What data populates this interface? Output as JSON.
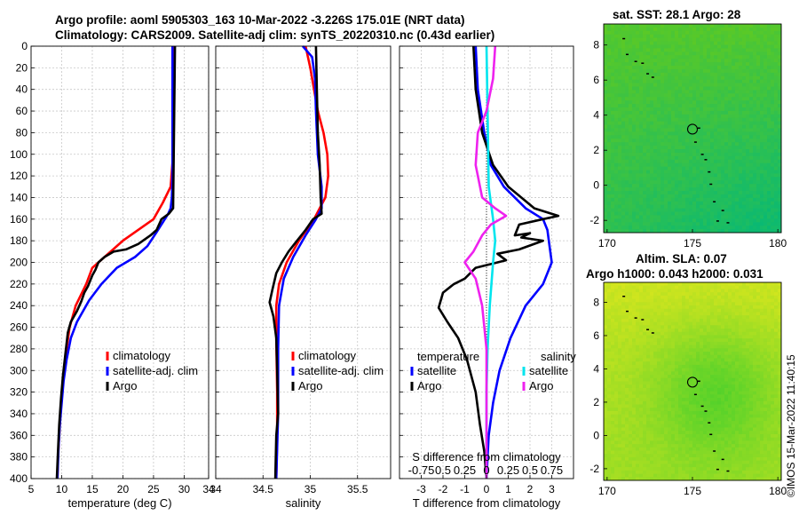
{
  "title": {
    "line1": "Argo profile: aoml 5905303_163 10-Mar-2022 -3.226S 175.01E (NRT data)",
    "line2": "Climatology: CARS2009. Satellite-adj clim: synTS_20220310.nc (0.43d earlier)"
  },
  "stamp": "©IMOS 15-Mar-2022 11:40:15",
  "colors": {
    "climatology": "#ff0000",
    "satellite": "#0000ff",
    "argo": "#000000",
    "sat_salinity": "#00e5ee",
    "argo_salinity": "#ee22ee"
  },
  "chart_data": [
    {
      "type": "line",
      "id": "temperature",
      "xlabel": "temperature (deg C)",
      "ylabel": "",
      "xlim": [
        5,
        34
      ],
      "ylim": [
        400,
        0
      ],
      "xticks": [
        5,
        10,
        15,
        20,
        25,
        30,
        34
      ],
      "yticks": [
        0,
        20,
        40,
        60,
        80,
        100,
        120,
        140,
        160,
        180,
        200,
        220,
        240,
        260,
        280,
        300,
        320,
        340,
        360,
        380,
        400
      ],
      "legend": [
        "climatology",
        "satellite-adj. clim",
        "Argo"
      ],
      "series": [
        {
          "name": "climatology",
          "color_key": "climatology",
          "points": [
            [
              28.3,
              0
            ],
            [
              28.3,
              40
            ],
            [
              28.2,
              100
            ],
            [
              27.8,
              130
            ],
            [
              26.5,
              145
            ],
            [
              25,
              160
            ],
            [
              20,
              180
            ],
            [
              17,
              195
            ],
            [
              15,
              205
            ],
            [
              14,
              220
            ],
            [
              12.3,
              240
            ],
            [
              11.3,
              260
            ],
            [
              10.8,
              280
            ],
            [
              10.4,
              300
            ],
            [
              10.1,
              320
            ],
            [
              9.8,
              340
            ],
            [
              9.6,
              360
            ],
            [
              9.4,
              380
            ],
            [
              9.3,
              400
            ]
          ]
        },
        {
          "name": "satellite-adj. clim",
          "color_key": "satellite",
          "points": [
            [
              28.1,
              0
            ],
            [
              28.1,
              80
            ],
            [
              28.1,
              120
            ],
            [
              28.0,
              140
            ],
            [
              27.8,
              150
            ],
            [
              27.4,
              155
            ],
            [
              26.5,
              163
            ],
            [
              25.5,
              172
            ],
            [
              24,
              185
            ],
            [
              22,
              195
            ],
            [
              19,
              205
            ],
            [
              16.5,
              220
            ],
            [
              14.5,
              235
            ],
            [
              12.5,
              255
            ],
            [
              11.5,
              270
            ],
            [
              10.8,
              290
            ],
            [
              10.3,
              310
            ],
            [
              10,
              330
            ],
            [
              9.7,
              350
            ],
            [
              9.5,
              370
            ],
            [
              9.3,
              400
            ]
          ]
        },
        {
          "name": "Argo",
          "color_key": "argo",
          "points": [
            [
              28.5,
              0
            ],
            [
              28.4,
              50
            ],
            [
              28.3,
              100
            ],
            [
              28.2,
              150
            ],
            [
              27.5,
              155
            ],
            [
              26.3,
              160
            ],
            [
              25.5,
              170
            ],
            [
              24.5,
              175
            ],
            [
              22.5,
              183
            ],
            [
              20.5,
              188
            ],
            [
              18.5,
              190
            ],
            [
              17,
              195
            ],
            [
              16,
              200
            ],
            [
              15.5,
              207
            ],
            [
              15,
              212
            ],
            [
              14.3,
              222
            ],
            [
              13.7,
              228
            ],
            [
              13.2,
              236
            ],
            [
              12.5,
              245
            ],
            [
              11.5,
              255
            ],
            [
              11,
              265
            ],
            [
              10.6,
              285
            ],
            [
              10.2,
              305
            ],
            [
              9.9,
              325
            ],
            [
              9.6,
              350
            ],
            [
              9.4,
              375
            ],
            [
              9.2,
              400
            ]
          ]
        }
      ]
    },
    {
      "type": "line",
      "id": "salinity",
      "xlabel": "salinity",
      "ylabel": "",
      "xlim": [
        34,
        35.85
      ],
      "ylim": [
        400,
        0
      ],
      "xticks": [
        34,
        34.5,
        35,
        35.5
      ],
      "yticks": [
        0,
        20,
        40,
        60,
        80,
        100,
        120,
        140,
        160,
        180,
        200,
        220,
        240,
        260,
        280,
        300,
        320,
        340,
        360,
        380,
        400
      ],
      "legend": [
        "climatology",
        "satellite-adj. clim",
        "Argo"
      ],
      "series": [
        {
          "name": "climatology",
          "color_key": "climatology",
          "points": [
            [
              34.95,
              0
            ],
            [
              35.0,
              20
            ],
            [
              35.04,
              40
            ],
            [
              35.08,
              60
            ],
            [
              35.14,
              80
            ],
            [
              35.18,
              100
            ],
            [
              35.19,
              120
            ],
            [
              35.16,
              140
            ],
            [
              35.04,
              160
            ],
            [
              34.88,
              180
            ],
            [
              34.75,
              200
            ],
            [
              34.67,
              220
            ],
            [
              34.64,
              240
            ],
            [
              34.64,
              270
            ],
            [
              34.65,
              320
            ],
            [
              34.65,
              360
            ],
            [
              34.64,
              400
            ]
          ]
        },
        {
          "name": "satellite-adj. clim",
          "color_key": "satellite",
          "points": [
            [
              34.92,
              0
            ],
            [
              35.02,
              10
            ],
            [
              35.05,
              30
            ],
            [
              35.06,
              60
            ],
            [
              35.08,
              100
            ],
            [
              35.12,
              130
            ],
            [
              35.12,
              150
            ],
            [
              35.06,
              160
            ],
            [
              34.95,
              175
            ],
            [
              34.82,
              195
            ],
            [
              34.72,
              215
            ],
            [
              34.67,
              240
            ],
            [
              34.66,
              280
            ],
            [
              34.66,
              340
            ],
            [
              34.64,
              400
            ]
          ]
        },
        {
          "name": "Argo",
          "color_key": "argo",
          "points": [
            [
              35.06,
              0
            ],
            [
              35.07,
              40
            ],
            [
              35.08,
              80
            ],
            [
              35.1,
              110
            ],
            [
              35.11,
              140
            ],
            [
              35.12,
              155
            ],
            [
              35.03,
              160
            ],
            [
              34.95,
              170
            ],
            [
              34.86,
              180
            ],
            [
              34.77,
              190
            ],
            [
              34.7,
              200
            ],
            [
              34.64,
              210
            ],
            [
              34.6,
              225
            ],
            [
              34.57,
              237
            ],
            [
              34.61,
              250
            ],
            [
              34.64,
              270
            ],
            [
              34.65,
              300
            ],
            [
              34.66,
              340
            ],
            [
              34.64,
              360
            ],
            [
              34.63,
              400
            ]
          ]
        }
      ]
    },
    {
      "type": "line",
      "id": "difference",
      "xlabel": "T difference from climatology",
      "xlabel_top": "S difference from climatology",
      "xlim": [
        -4,
        4
      ],
      "ylim": [
        400,
        0
      ],
      "xticks": [
        -3,
        -2,
        -1,
        0,
        1,
        2,
        3
      ],
      "s_ticks_text": "-0.75 0.5 0.25   0   0.25 0.5 0.75",
      "s_tick_labels": [
        "-0.75",
        "0.5",
        "0.25",
        "0",
        "0.25",
        "0.5",
        "0.75"
      ],
      "yticks": [
        0,
        20,
        40,
        60,
        80,
        100,
        120,
        140,
        160,
        180,
        200,
        220,
        240,
        260,
        280,
        300,
        320,
        340,
        360,
        380,
        400
      ],
      "legend_left_header": "temperature",
      "legend_right_header": "salinity",
      "legend": [
        "satellite",
        "Argo",
        "satellite",
        "Argo"
      ],
      "series": [
        {
          "name": "T satellite",
          "color_key": "satellite",
          "points": [
            [
              -0.5,
              0
            ],
            [
              -0.4,
              40
            ],
            [
              -0.1,
              80
            ],
            [
              0.2,
              110
            ],
            [
              0.8,
              130
            ],
            [
              1.8,
              150
            ],
            [
              2.6,
              160
            ],
            [
              2.8,
              170
            ],
            [
              2.9,
              185
            ],
            [
              3.0,
              200
            ],
            [
              2.6,
              220
            ],
            [
              1.8,
              240
            ],
            [
              1.1,
              270
            ],
            [
              0.6,
              300
            ],
            [
              0.3,
              330
            ],
            [
              0.1,
              360
            ],
            [
              0,
              400
            ]
          ]
        },
        {
          "name": "T Argo",
          "color_key": "argo",
          "points": [
            [
              -0.6,
              0
            ],
            [
              -0.5,
              40
            ],
            [
              -0.2,
              80
            ],
            [
              0.3,
              110
            ],
            [
              1.0,
              130
            ],
            [
              2.2,
              150
            ],
            [
              3.3,
              157
            ],
            [
              2.6,
              160
            ],
            [
              1.5,
              165
            ],
            [
              1.3,
              175
            ],
            [
              2.0,
              173
            ],
            [
              1.6,
              177
            ],
            [
              2.6,
              180
            ],
            [
              1.5,
              188
            ],
            [
              0.5,
              192
            ],
            [
              0.9,
              198
            ],
            [
              -0.5,
              205
            ],
            [
              -1.0,
              215
            ],
            [
              -1.5,
              220
            ],
            [
              -2.0,
              228
            ],
            [
              -2.2,
              242
            ],
            [
              -1.8,
              255
            ],
            [
              -1.3,
              270
            ],
            [
              -0.9,
              290
            ],
            [
              -0.5,
              320
            ],
            [
              -0.3,
              350
            ],
            [
              -0.1,
              375
            ],
            [
              0,
              400
            ]
          ]
        },
        {
          "name": "S satellite",
          "color_key": "sat_salinity",
          "points": [
            [
              0,
              0
            ],
            [
              0.05,
              60
            ],
            [
              0.1,
              130
            ],
            [
              0.3,
              160
            ],
            [
              0.4,
              180
            ],
            [
              0.3,
              200
            ],
            [
              0.15,
              240
            ],
            [
              0.05,
              280
            ],
            [
              0,
              320
            ],
            [
              0,
              400
            ]
          ]
        },
        {
          "name": "S Argo",
          "color_key": "argo_salinity",
          "points": [
            [
              0.4,
              0
            ],
            [
              0.3,
              30
            ],
            [
              0,
              60
            ],
            [
              -0.4,
              80
            ],
            [
              -0.5,
              110
            ],
            [
              -0.2,
              140
            ],
            [
              0.4,
              150
            ],
            [
              0.9,
              157
            ],
            [
              0.2,
              165
            ],
            [
              -0.2,
              175
            ],
            [
              -0.6,
              190
            ],
            [
              -1.0,
              200
            ],
            [
              -0.5,
              215
            ],
            [
              -0.2,
              240
            ],
            [
              0,
              280
            ],
            [
              0,
              400
            ]
          ]
        }
      ]
    },
    {
      "type": "heatmap",
      "id": "sst_map",
      "title": "sat. SST: 28.1 Argo: 28",
      "xlim": [
        169.8,
        180.2
      ],
      "ylim": [
        -2.7,
        9.2
      ],
      "xticks": [
        170,
        175,
        180
      ],
      "yticks": [
        -2,
        0,
        2,
        4,
        6,
        8
      ],
      "marker": [
        175.0,
        3.2
      ]
    },
    {
      "type": "heatmap",
      "id": "sla_map",
      "title_line1": "Altim. SLA: 0.07",
      "title_line2": "Argo h1000: 0.043 h2000: 0.031",
      "xlim": [
        169.8,
        180.2
      ],
      "ylim": [
        -2.7,
        9.2
      ],
      "xticks": [
        170,
        175,
        180
      ],
      "yticks": [
        -2,
        0,
        2,
        4,
        6,
        8
      ],
      "marker": [
        175.0,
        3.2
      ]
    }
  ]
}
